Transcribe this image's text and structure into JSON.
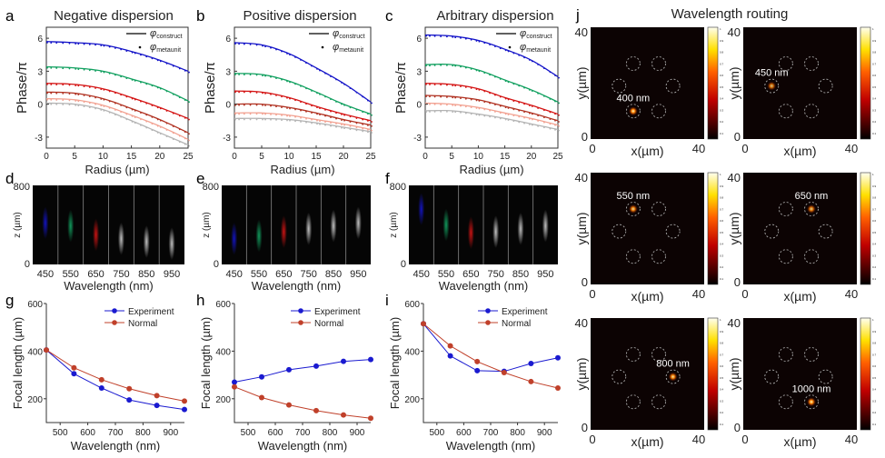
{
  "figure_title_j": "Wavelength routing",
  "colors": {
    "blue": "#1414c8",
    "green": "#12a060",
    "red": "#d41414",
    "brown": "#b03222",
    "pink": "#f2a292",
    "gray": "#b4b4b4",
    "experiment": "#1a1ad0",
    "normal": "#c0402a"
  },
  "chart_data": [
    {
      "panel": "a",
      "type": "line",
      "title": "Negative dispersion",
      "xlabel": "Radius (µm)",
      "ylabel": "Phase/π",
      "xlim": [
        0,
        25
      ],
      "ylim": [
        -4,
        7
      ],
      "xticks": [
        "0",
        "5",
        "10",
        "15",
        "20",
        "25"
      ],
      "yticks": [
        "6",
        "3",
        "0",
        "-3"
      ],
      "legend": [
        "φ",
        "construct",
        "φ",
        "metaunit"
      ],
      "x": [
        0,
        5,
        10,
        15,
        20,
        25
      ],
      "series": [
        {
          "color": "blue",
          "values": [
            5.7,
            5.6,
            5.4,
            4.8,
            4.0,
            3.0
          ]
        },
        {
          "color": "green",
          "values": [
            3.4,
            3.3,
            3.0,
            2.3,
            1.5,
            0.3
          ]
        },
        {
          "color": "red",
          "values": [
            1.9,
            1.8,
            1.4,
            0.6,
            -0.3,
            -1.3
          ]
        },
        {
          "color": "brown",
          "values": [
            1.1,
            1.0,
            0.5,
            -0.4,
            -1.4,
            -2.6
          ]
        },
        {
          "color": "pink",
          "values": [
            0.5,
            0.4,
            -0.1,
            -1.0,
            -2.0,
            -3.2
          ]
        },
        {
          "color": "gray",
          "values": [
            0.1,
            0.0,
            -0.5,
            -1.5,
            -2.6,
            -3.7
          ]
        }
      ]
    },
    {
      "panel": "b",
      "type": "line",
      "title": "Positive dispersion",
      "xlabel": "Radius (µm)",
      "ylabel": "Phase/π",
      "xlim": [
        0,
        25
      ],
      "ylim": [
        -4,
        7
      ],
      "xticks": [
        "0",
        "5",
        "10",
        "15",
        "20",
        "25"
      ],
      "yticks": [
        "6",
        "3",
        "0",
        "-3"
      ],
      "legend": [
        "φ",
        "construct",
        "φ",
        "metaunit"
      ],
      "x": [
        0,
        5,
        10,
        15,
        20,
        25
      ],
      "series": [
        {
          "color": "blue",
          "values": [
            5.6,
            5.4,
            4.6,
            3.3,
            1.9,
            0.2
          ]
        },
        {
          "color": "green",
          "values": [
            2.8,
            2.7,
            2.1,
            1.1,
            0.0,
            -0.9
          ]
        },
        {
          "color": "red",
          "values": [
            1.2,
            1.1,
            0.6,
            -0.2,
            -0.9,
            -1.5
          ]
        },
        {
          "color": "brown",
          "values": [
            0.0,
            0.0,
            -0.3,
            -0.8,
            -1.4,
            -1.9
          ]
        },
        {
          "color": "pink",
          "values": [
            -0.8,
            -0.8,
            -1.0,
            -1.4,
            -1.8,
            -2.3
          ]
        },
        {
          "color": "gray",
          "values": [
            -1.3,
            -1.3,
            -1.4,
            -1.7,
            -2.1,
            -2.5
          ]
        }
      ]
    },
    {
      "panel": "c",
      "type": "line",
      "title": "Arbitrary dispersion",
      "xlabel": "Radius (µm)",
      "ylabel": "Phase/π",
      "xlim": [
        0,
        25
      ],
      "ylim": [
        -4,
        7
      ],
      "xticks": [
        "0",
        "5",
        "10",
        "15",
        "20",
        "25"
      ],
      "yticks": [
        "6",
        "3",
        "0",
        "-3"
      ],
      "legend": [
        "φ",
        "construct",
        "φ",
        "metaunit"
      ],
      "x": [
        0,
        5,
        10,
        15,
        20,
        25
      ],
      "series": [
        {
          "color": "blue",
          "values": [
            6.3,
            6.2,
            5.8,
            5.0,
            4.0,
            2.5
          ]
        },
        {
          "color": "green",
          "values": [
            3.6,
            3.6,
            3.1,
            2.2,
            1.3,
            0.2
          ]
        },
        {
          "color": "red",
          "values": [
            1.9,
            1.8,
            1.4,
            0.6,
            -0.1,
            -0.9
          ]
        },
        {
          "color": "brown",
          "values": [
            0.8,
            0.7,
            0.4,
            -0.2,
            -0.8,
            -1.5
          ]
        },
        {
          "color": "pink",
          "values": [
            0.1,
            0.0,
            -0.3,
            -0.8,
            -1.3,
            -1.9
          ]
        },
        {
          "color": "gray",
          "values": [
            -0.6,
            -0.6,
            -0.9,
            -1.3,
            -1.8,
            -2.3
          ]
        }
      ]
    },
    {
      "panel": "d",
      "type": "heatmap",
      "xlabel": "Wavelength (nm)",
      "ylabel": "z (µm)",
      "ylim": [
        0,
        800
      ],
      "yticks": [
        "800",
        "0"
      ],
      "categories": [
        "450",
        "550",
        "650",
        "750",
        "850",
        "950"
      ],
      "spot_colors": [
        "blue",
        "green",
        "red",
        "white",
        "white",
        "white"
      ],
      "focus_z": [
        420,
        390,
        300,
        260,
        230,
        210
      ]
    },
    {
      "panel": "e",
      "type": "heatmap",
      "xlabel": "Wavelength (nm)",
      "ylabel": "z (µm)",
      "ylim": [
        0,
        800
      ],
      "yticks": [
        "800",
        "0"
      ],
      "categories": [
        "450",
        "550",
        "650",
        "750",
        "850",
        "950"
      ],
      "spot_colors": [
        "blue",
        "green",
        "red",
        "white",
        "white",
        "white"
      ],
      "focus_z": [
        260,
        290,
        330,
        360,
        390,
        420
      ]
    },
    {
      "panel": "f",
      "type": "heatmap",
      "xlabel": "Wavelength (nm)",
      "ylabel": "z (µm)",
      "ylim": [
        0,
        800
      ],
      "yticks": [
        "800",
        "0"
      ],
      "categories": [
        "450",
        "550",
        "650",
        "750",
        "850",
        "950"
      ],
      "spot_colors": [
        "blue",
        "green",
        "red",
        "white",
        "white",
        "white"
      ],
      "focus_z": [
        560,
        400,
        320,
        330,
        360,
        390
      ]
    },
    {
      "panel": "g",
      "type": "line",
      "xlabel": "Wavelength (nm)",
      "ylabel": "Focal length (µm)",
      "xlim": [
        450,
        950
      ],
      "ylim": [
        100,
        600
      ],
      "xticks": [
        "500",
        "600",
        "700",
        "800",
        "900"
      ],
      "yticks": [
        "600",
        "400",
        "200"
      ],
      "x": [
        450,
        550,
        650,
        750,
        850,
        950
      ],
      "series": [
        {
          "name": "Experiment",
          "color": "experiment",
          "values": [
            405,
            305,
            245,
            195,
            172,
            155
          ]
        },
        {
          "name": "Normal",
          "color": "normal",
          "values": [
            405,
            330,
            280,
            242,
            213,
            190
          ]
        }
      ]
    },
    {
      "panel": "h",
      "type": "line",
      "xlabel": "Wavelength (nm)",
      "ylabel": "Focal length (µm)",
      "xlim": [
        450,
        950
      ],
      "ylim": [
        100,
        600
      ],
      "xticks": [
        "500",
        "600",
        "700",
        "800",
        "900"
      ],
      "yticks": [
        "600",
        "400",
        "200"
      ],
      "x": [
        450,
        550,
        650,
        750,
        850,
        950
      ],
      "series": [
        {
          "name": "Experiment",
          "color": "experiment",
          "values": [
            270,
            292,
            322,
            337,
            357,
            365
          ]
        },
        {
          "name": "Normal",
          "color": "normal",
          "values": [
            250,
            205,
            174,
            150,
            132,
            118
          ]
        }
      ]
    },
    {
      "panel": "i",
      "type": "line",
      "xlabel": "Wavelength (nm)",
      "ylabel": "Focal length (µm)",
      "xlim": [
        450,
        950
      ],
      "ylim": [
        100,
        600
      ],
      "xticks": [
        "500",
        "600",
        "700",
        "800",
        "900"
      ],
      "yticks": [
        "600",
        "400",
        "200"
      ],
      "x": [
        450,
        550,
        650,
        750,
        850,
        950
      ],
      "series": [
        {
          "name": "Experiment",
          "color": "experiment",
          "values": [
            515,
            380,
            318,
            315,
            348,
            372
          ]
        },
        {
          "name": "Normal",
          "color": "normal",
          "values": [
            515,
            422,
            356,
            310,
            272,
            245
          ]
        }
      ]
    },
    {
      "panel": "j",
      "type": "heatmap",
      "title": "Wavelength routing",
      "xlabel": "x(µm)",
      "ylabel": "y(µm)",
      "xlim": [
        0,
        40
      ],
      "ylim": [
        0,
        40
      ],
      "tick_labels": [
        "0",
        "40"
      ],
      "colorbar_ticks": [
        "1",
        "0.9",
        "0.8",
        "0.7",
        "0.6",
        "0.5",
        "0.4",
        "0.3",
        "0.2",
        "0.1"
      ],
      "detector_centers": [
        [
          15,
          27
        ],
        [
          24,
          27
        ],
        [
          10,
          19
        ],
        [
          29,
          19
        ],
        [
          15,
          10
        ],
        [
          24,
          10
        ]
      ],
      "maps": [
        {
          "label": "400 nm",
          "focus": [
            15,
            10
          ],
          "intensity": 1.0
        },
        {
          "label": "450 nm",
          "focus": [
            10,
            19
          ],
          "intensity": 0.8
        },
        {
          "label": "550 nm",
          "focus": [
            15,
            27
          ],
          "intensity": 0.9
        },
        {
          "label": "650 nm",
          "focus": [
            24,
            27
          ],
          "intensity": 0.85
        },
        {
          "label": "800 nm",
          "focus": [
            29,
            19
          ],
          "intensity": 0.95
        },
        {
          "label": "1000 nm",
          "focus": [
            24,
            10
          ],
          "intensity": 1.0
        }
      ]
    }
  ]
}
